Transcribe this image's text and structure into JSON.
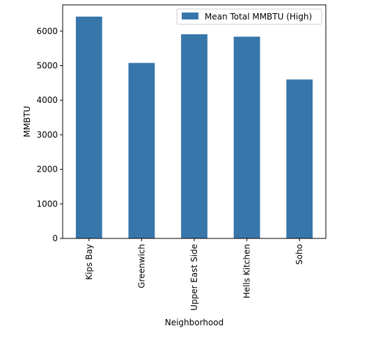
{
  "chart_data": {
    "type": "bar",
    "title": "",
    "xlabel": "Neighborhood",
    "ylabel": "MMBTU",
    "categories": [
      "Kips Bay",
      "Greenwich",
      "Upper East Side",
      "Hells Kitchen",
      "Soho"
    ],
    "series": [
      {
        "name": "Mean Total MMBTU (High)",
        "values": [
          6420,
          5080,
          5910,
          5840,
          4600
        ],
        "color": "#3776ab"
      }
    ],
    "ylim": [
      0,
      6760
    ],
    "yticks": [
      0,
      1000,
      2000,
      3000,
      4000,
      5000,
      6000
    ],
    "grid": false,
    "legend_position": "top-right"
  }
}
